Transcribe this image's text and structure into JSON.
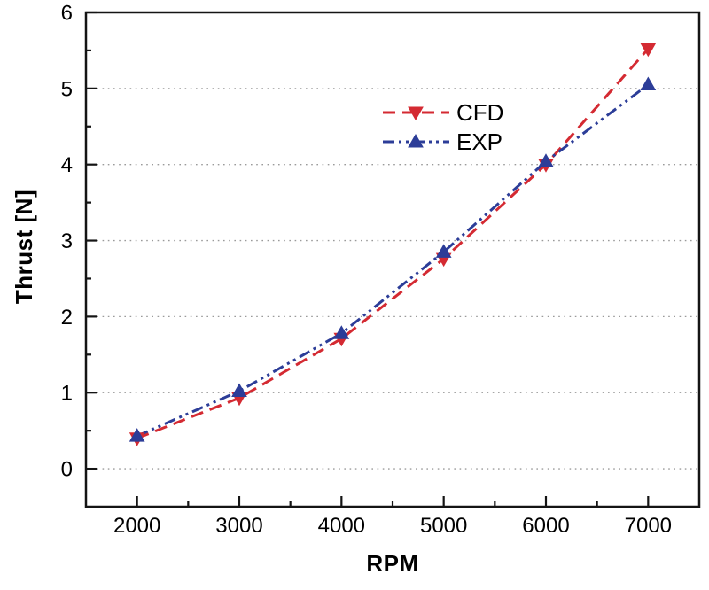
{
  "chart_data": {
    "type": "line",
    "title": "",
    "xlabel": "RPM",
    "ylabel": "Thrust [N]",
    "x": [
      2000,
      3000,
      4000,
      5000,
      6000,
      7000
    ],
    "series": [
      {
        "name": "CFD",
        "marker": "triangle-down",
        "line_style": "dashed",
        "color": "#d42a32",
        "values": [
          0.4,
          0.93,
          1.71,
          2.76,
          4.0,
          5.52
        ]
      },
      {
        "name": "EXP",
        "marker": "triangle-up",
        "line_style": "dash-dot-dot",
        "color": "#2c3d98",
        "values": [
          0.43,
          1.02,
          1.78,
          2.85,
          4.04,
          5.05
        ]
      }
    ],
    "xlim": [
      1500,
      7500
    ],
    "ylim": [
      -0.5,
      6
    ],
    "x_major_ticks": [
      2000,
      3000,
      4000,
      5000,
      6000,
      7000
    ],
    "x_minor_step": 500,
    "y_major_ticks": [
      0,
      1,
      2,
      3,
      4,
      5,
      6
    ],
    "y_minor_step": 0.5,
    "grid": "horizontal-dotted",
    "grid_color": "#9a9a9a",
    "axis_color": "#141414",
    "legend": {
      "position": "upper-center",
      "entries": [
        "CFD",
        "EXP"
      ]
    }
  }
}
